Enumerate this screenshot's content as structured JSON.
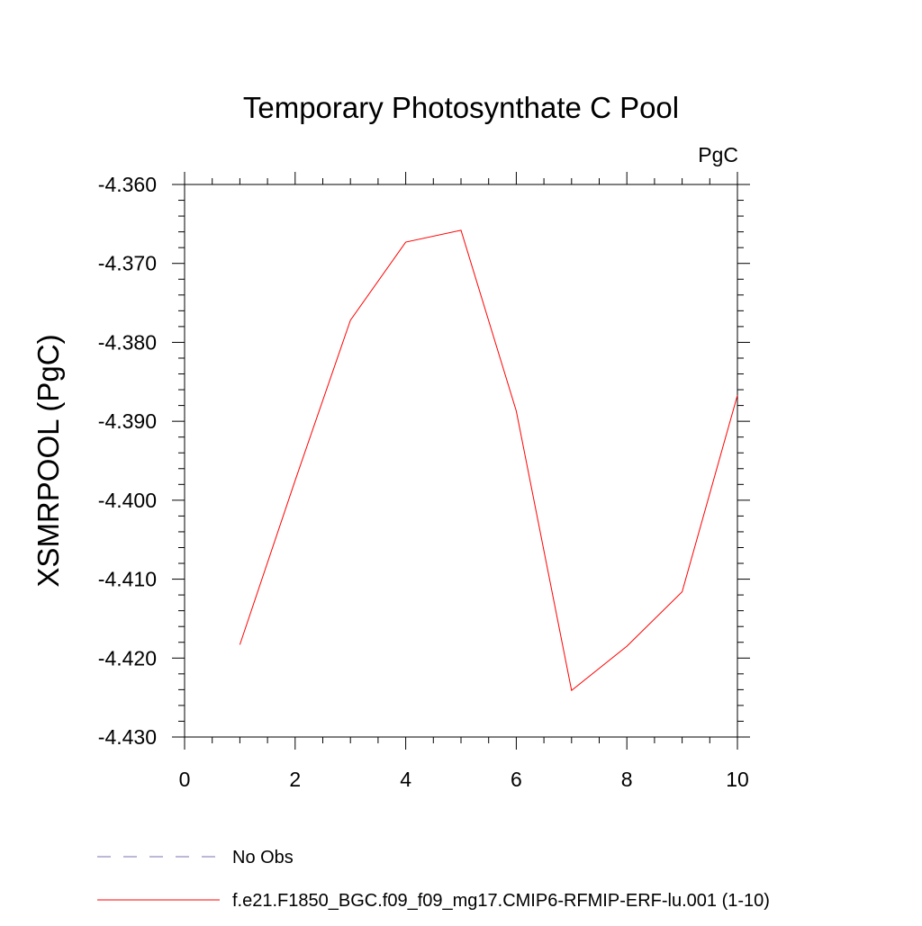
{
  "chart_data": {
    "type": "line",
    "title": "Temporary Photosynthate C Pool",
    "units_label": "PgC",
    "xlabel": "",
    "ylabel": "XSMRPOOL  (PgC)",
    "xlim": [
      0,
      10
    ],
    "ylim": [
      -4.43,
      -4.36
    ],
    "x_ticks": [
      0,
      2,
      4,
      6,
      8,
      10
    ],
    "x_tick_labels": [
      "0",
      "2",
      "4",
      "6",
      "8",
      "10"
    ],
    "y_ticks": [
      -4.36,
      -4.37,
      -4.38,
      -4.39,
      -4.4,
      -4.41,
      -4.42,
      -4.43
    ],
    "y_tick_labels": [
      "-4.360",
      "-4.370",
      "-4.380",
      "-4.390",
      "-4.400",
      "-4.410",
      "-4.420",
      "-4.430"
    ],
    "grid": false,
    "series": [
      {
        "name": "f.e21.F1850_BGC.f09_f09_mg17.CMIP6-RFMIP-ERF-lu.001 (1-10)",
        "color": "#ff0000",
        "style": "solid",
        "x": [
          1,
          2,
          3,
          4,
          5,
          6,
          7,
          8,
          9,
          10
        ],
        "values": [
          -4.4183,
          -4.3975,
          -4.3772,
          -4.3673,
          -4.3658,
          -4.3887,
          -4.4241,
          -4.4185,
          -4.4116,
          -4.3867
        ]
      }
    ],
    "legend": [
      {
        "label": "No Obs",
        "color": "#7b6fb0",
        "style": "dashed"
      },
      {
        "label": "f.e21.F1850_BGC.f09_f09_mg17.CMIP6-RFMIP-ERF-lu.001 (1-10)",
        "color": "#ff0000",
        "style": "solid"
      }
    ],
    "legend_position": "bottom-left"
  }
}
